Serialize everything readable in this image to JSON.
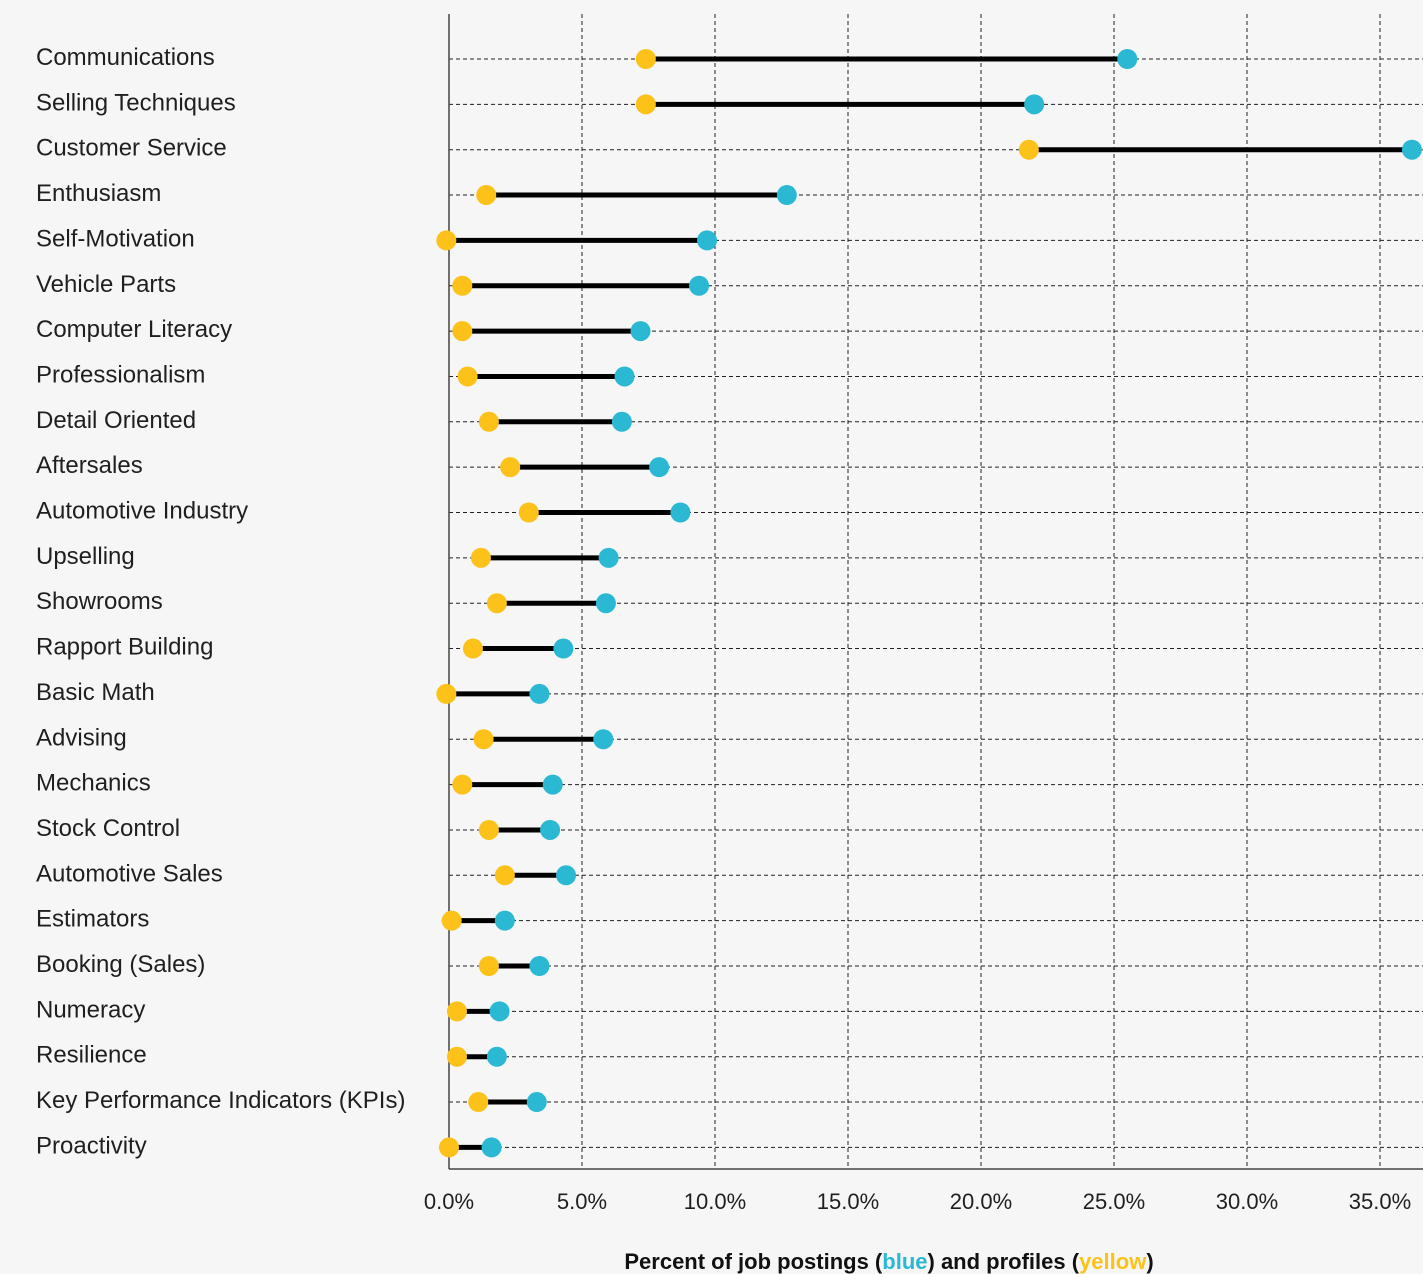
{
  "chart_data": {
    "type": "dumbbell",
    "xlabel_parts": [
      {
        "text": "Percent of job postings (",
        "color_key": "text"
      },
      {
        "text": "blue",
        "color_key": "postings"
      },
      {
        "text": ") and profiles (",
        "color_key": "text"
      },
      {
        "text": "yellow",
        "color_key": "profiles"
      },
      {
        "text": ")",
        "color_key": "text"
      }
    ],
    "xlim": [
      0,
      36.5
    ],
    "xticks": [
      0,
      5,
      10,
      15,
      20,
      25,
      30,
      35
    ],
    "xtick_labels": [
      "0.0%",
      "5.0%",
      "10.0%",
      "15.0%",
      "20.0%",
      "25.0%",
      "30.0%",
      "35.0%"
    ],
    "grid": true,
    "categories": [
      "Communications",
      "Selling Techniques",
      "Customer Service",
      "Enthusiasm",
      "Self-Motivation",
      "Vehicle Parts",
      "Computer Literacy",
      "Professionalism",
      "Detail Oriented",
      "Aftersales",
      "Automotive Industry",
      "Upselling",
      "Showrooms",
      "Rapport Building",
      "Basic Math",
      "Advising",
      "Mechanics",
      "Stock Control",
      "Automotive Sales",
      "Estimators",
      "Booking (Sales)",
      "Numeracy",
      "Resilience",
      "Key Performance Indicators (KPIs)",
      "Proactivity"
    ],
    "series": [
      {
        "color_key": "postings",
        "values": [
          25.5,
          22.0,
          36.2,
          12.7,
          9.7,
          9.4,
          7.2,
          6.6,
          6.5,
          7.9,
          8.7,
          6.0,
          5.9,
          4.3,
          3.4,
          5.8,
          3.9,
          3.8,
          4.4,
          2.1,
          3.4,
          1.9,
          1.8,
          3.3,
          1.6
        ]
      },
      {
        "color_key": "profiles",
        "values": [
          7.4,
          7.4,
          21.8,
          1.4,
          -0.1,
          0.5,
          0.5,
          0.7,
          1.5,
          2.3,
          3.0,
          1.2,
          1.8,
          0.9,
          -0.1,
          1.3,
          0.5,
          1.5,
          2.1,
          0.1,
          1.5,
          0.3,
          0.3,
          1.1,
          0.0
        ]
      }
    ]
  },
  "colors": {
    "postings": "#2bb8d3",
    "profiles": "#fcc21a",
    "bar": "#000000",
    "text": "#111111",
    "background": "#f5f6f5"
  }
}
